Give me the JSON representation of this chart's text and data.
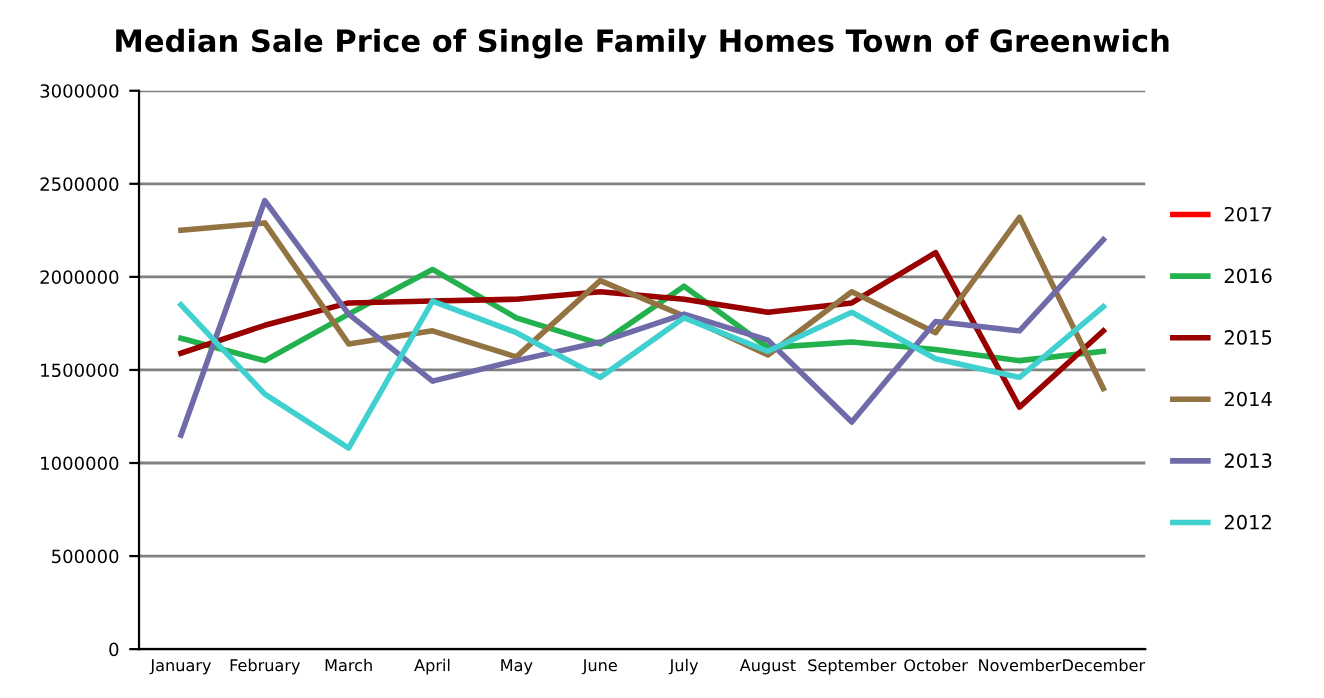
{
  "chart_data": {
    "type": "line",
    "title": "Median Sale Price of Single Family Homes Town of Greenwich",
    "categories": [
      "January",
      "February",
      "March",
      "April",
      "May",
      "June",
      "July",
      "August",
      "September",
      "October",
      "November",
      "December"
    ],
    "series": [
      {
        "name": "2017",
        "color": "#ff0000",
        "values": [
          null,
          null,
          null,
          null,
          null,
          null,
          null,
          null,
          null,
          null,
          null,
          null
        ]
      },
      {
        "name": "2016",
        "color": "#22b14c",
        "values": [
          1670000,
          1550000,
          1800000,
          2040000,
          1780000,
          1640000,
          1950000,
          1620000,
          1650000,
          1610000,
          1550000,
          1600000
        ]
      },
      {
        "name": "2015",
        "color": "#990000",
        "values": [
          1590000,
          1740000,
          1860000,
          1870000,
          1880000,
          1920000,
          1880000,
          1810000,
          1860000,
          2130000,
          1300000,
          1710000
        ]
      },
      {
        "name": "2014",
        "color": "#937341",
        "values": [
          2250000,
          2290000,
          1640000,
          1710000,
          1570000,
          1980000,
          1790000,
          1580000,
          1920000,
          1700000,
          2320000,
          1400000
        ]
      },
      {
        "name": "2013",
        "color": "#6f6aa8",
        "values": [
          1150000,
          2410000,
          1800000,
          1440000,
          1550000,
          1650000,
          1800000,
          1660000,
          1220000,
          1760000,
          1710000,
          2200000
        ]
      },
      {
        "name": "2012",
        "color": "#40d0d0",
        "values": [
          1850000,
          1370000,
          1080000,
          1870000,
          1700000,
          1460000,
          1780000,
          1600000,
          1810000,
          1560000,
          1460000,
          1840000
        ]
      }
    ],
    "ylim": [
      0,
      3000000
    ],
    "yticks": [
      0,
      500000,
      1000000,
      1500000,
      2000000,
      2500000,
      3000000
    ],
    "grid": "y",
    "legend": "right",
    "marker": "none",
    "line_style": "solid"
  }
}
